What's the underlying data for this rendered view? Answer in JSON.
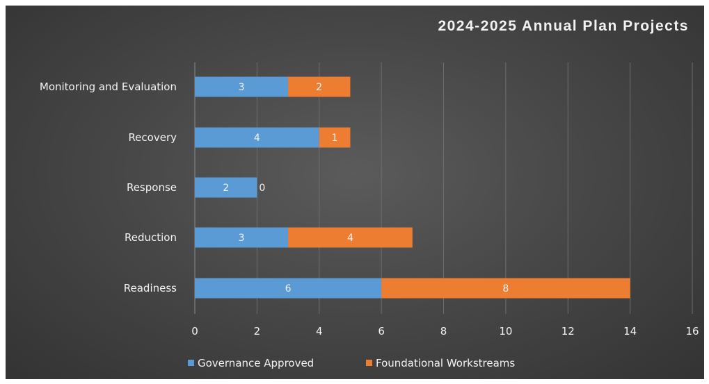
{
  "chart_data": {
    "type": "bar",
    "orientation": "horizontal",
    "stacked": true,
    "title": "2024-2025 Annual Plan Projects",
    "xlabel": "",
    "ylabel": "",
    "categories": [
      "Monitoring and Evaluation",
      "Recovery",
      "Response",
      "Reduction",
      "Readiness"
    ],
    "series": [
      {
        "name": "Governance Approved",
        "values": [
          3,
          4,
          2,
          3,
          6
        ],
        "color": "#5b9bd5"
      },
      {
        "name": "Foundational Workstreams",
        "values": [
          2,
          1,
          0,
          4,
          8
        ],
        "color": "#ed7d31"
      }
    ],
    "xlim": [
      0,
      16
    ],
    "xticks": [
      "0",
      "2",
      "4",
      "6",
      "8",
      "10",
      "12",
      "14",
      "16"
    ],
    "grid": true,
    "legend": "bottom",
    "data_labels": true
  }
}
